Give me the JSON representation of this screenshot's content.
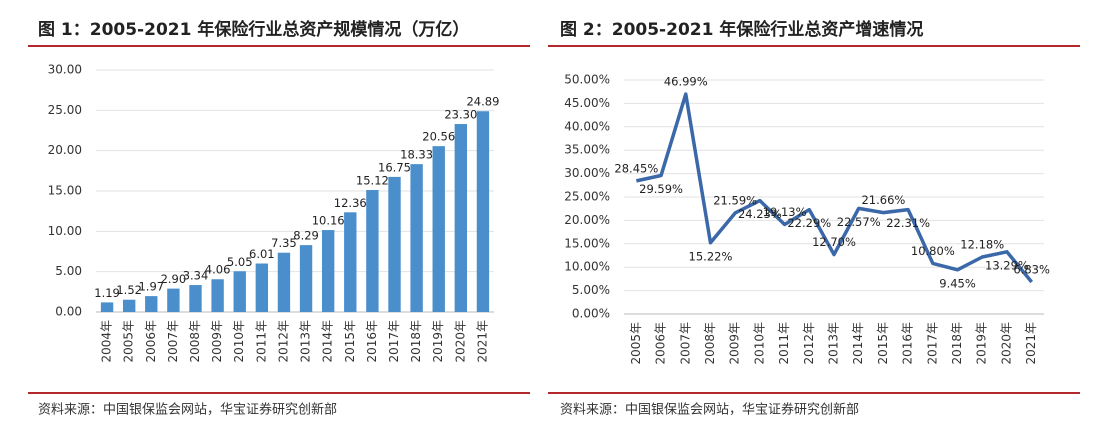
{
  "chart_data": [
    {
      "type": "bar",
      "title": "图 1：2005-2021 年保险行业总资产规模情况（万亿）",
      "source": "资料来源：中国银保监会网站，华宝证券研究创新部",
      "categories": [
        "2004年",
        "2005年",
        "2006年",
        "2007年",
        "2008年",
        "2009年",
        "2010年",
        "2011年",
        "2012年",
        "2013年",
        "2014年",
        "2015年",
        "2016年",
        "2017年",
        "2018年",
        "2019年",
        "2020年",
        "2021年"
      ],
      "values": [
        1.19,
        1.52,
        1.97,
        2.9,
        3.34,
        4.06,
        5.05,
        6.01,
        7.35,
        8.29,
        10.16,
        12.36,
        15.12,
        16.75,
        18.33,
        20.56,
        23.3,
        24.89
      ],
      "value_labels": [
        "1.19",
        "1.52",
        "1.97",
        "2.90",
        "3.34",
        "4.06",
        "5.05",
        "6.01",
        "7.35",
        "8.29",
        "10.16",
        "12.36",
        "15.12",
        "16.75",
        "18.33",
        "20.56",
        "23.30",
        "24.89"
      ],
      "color": "#4a8fcc",
      "ylim": [
        0,
        30
      ],
      "grid": true,
      "yticks": [
        {
          "value": 0,
          "label": "0.00"
        },
        {
          "value": 5,
          "label": "5.00"
        },
        {
          "value": 10,
          "label": "10.00"
        },
        {
          "value": 15,
          "label": "15.00"
        },
        {
          "value": 20,
          "label": "20.00"
        },
        {
          "value": 25,
          "label": "25.00"
        },
        {
          "value": 30,
          "label": "30.00"
        }
      ]
    },
    {
      "type": "line",
      "title": "图 2：2005-2021 年保险行业总资产增速情况",
      "source": "资料来源：中国银保监会网站，华宝证券研究创新部",
      "categories": [
        "2005年",
        "2006年",
        "2007年",
        "2008年",
        "2009年",
        "2010年",
        "2011年",
        "2012年",
        "2013年",
        "2014年",
        "2015年",
        "2016年",
        "2017年",
        "2018年",
        "2019年",
        "2020年",
        "2021年"
      ],
      "values": [
        28.45,
        29.59,
        46.99,
        15.22,
        21.59,
        24.23,
        19.13,
        22.29,
        12.7,
        22.57,
        21.66,
        22.31,
        10.8,
        9.45,
        12.18,
        13.29,
        6.83
      ],
      "value_labels": [
        "28.45%",
        "29.59%",
        "46.99%",
        "15.22%",
        "21.59%",
        "24.23%",
        "19.13%",
        "22.29%",
        "12.70%",
        "22.57%",
        "21.66%",
        "22.31%",
        "10.80%",
        "9.45%",
        "12.18%",
        "13.29%",
        "6.83%"
      ],
      "color": "#3a68a8",
      "ylim": [
        0,
        50
      ],
      "grid": true,
      "yticks": [
        {
          "value": 0,
          "label": "0.00%"
        },
        {
          "value": 5,
          "label": "5.00%"
        },
        {
          "value": 10,
          "label": "10.00%"
        },
        {
          "value": 15,
          "label": "15.00%"
        },
        {
          "value": 20,
          "label": "20.00%"
        },
        {
          "value": 25,
          "label": "25.00%"
        },
        {
          "value": 30,
          "label": "30.00%"
        },
        {
          "value": 35,
          "label": "35.00%"
        },
        {
          "value": 40,
          "label": "40.00%"
        },
        {
          "value": 45,
          "label": "45.00%"
        },
        {
          "value": 50,
          "label": "50.00%"
        }
      ]
    }
  ]
}
